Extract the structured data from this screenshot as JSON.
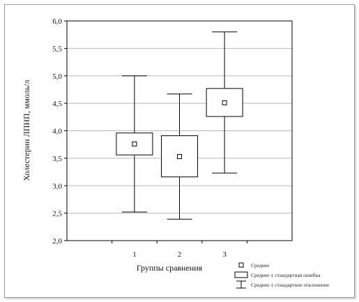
{
  "chart_data": {
    "type": "box",
    "xlabel": "Группы сравнения",
    "ylabel": "Холестерин ЛПНП, ммоль/л",
    "ylim": [
      2.0,
      6.0
    ],
    "yticks": [
      "2,0",
      "2,5",
      "3,0",
      "3,5",
      "4,0",
      "4,5",
      "5,0",
      "5,5",
      "6,0"
    ],
    "categories": [
      "1",
      "2",
      "3"
    ],
    "grid": true,
    "boxes": [
      {
        "group": "1",
        "mean": 3.76,
        "se_low": 3.56,
        "se_high": 3.96,
        "sd_low": 2.52,
        "sd_high": 5.0
      },
      {
        "group": "2",
        "mean": 3.53,
        "se_low": 3.16,
        "se_high": 3.91,
        "sd_low": 2.39,
        "sd_high": 4.67
      },
      {
        "group": "3",
        "mean": 4.51,
        "se_low": 4.26,
        "se_high": 4.77,
        "sd_low": 3.23,
        "sd_high": 5.8
      }
    ],
    "legend_position": "bottom-right",
    "legend": [
      {
        "marker": "square",
        "label": "Среднее"
      },
      {
        "marker": "box",
        "label": "Среднее ± стандартная ошибка"
      },
      {
        "marker": "whisker",
        "label": "Среднее ± стандартное отклонение"
      }
    ]
  }
}
